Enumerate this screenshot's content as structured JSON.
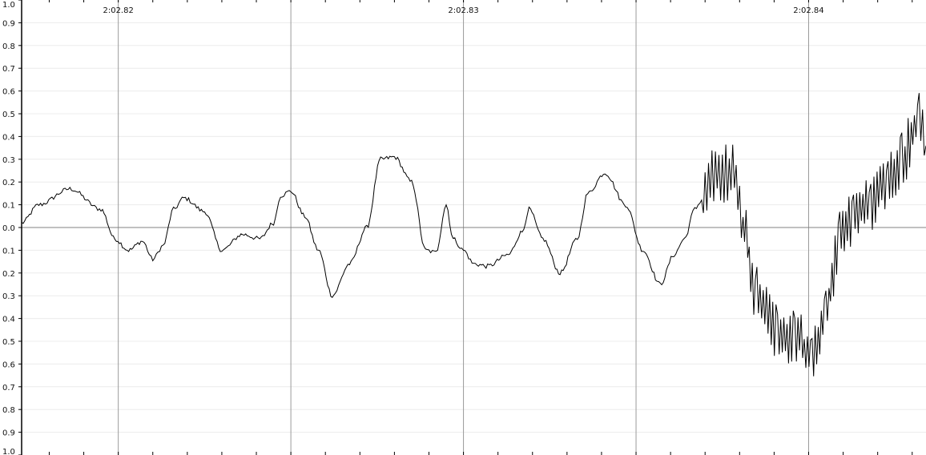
{
  "colors": {
    "background": "#ffffff",
    "grid_minor": "#ececec",
    "grid_major": "#9a9a9a",
    "zero_line": "#808080",
    "axis": "#000000",
    "waveform": "#000000"
  },
  "chart_data": {
    "type": "line",
    "title": "",
    "xlabel": "",
    "ylabel": "",
    "y_ticks": [
      "1.0",
      "0.9",
      "0.8",
      "0.7",
      "0.6",
      "0.5",
      "0.4",
      "0.3",
      "0.2",
      "0.1",
      "0.0",
      "0.1",
      "0.2",
      "0.3",
      "0.4",
      "0.5",
      "0.6",
      "0.7",
      "0.8",
      "0.9",
      "1.0"
    ],
    "time_labels": [
      "2:02.82",
      "2:02.83",
      "2:02.84"
    ],
    "time_label_values": [
      122.82,
      122.83,
      122.84
    ],
    "xlim": [
      122.8172,
      122.8434
    ],
    "ylim": [
      -1.0,
      1.0
    ],
    "major_grid_times": [
      122.82,
      122.825,
      122.83,
      122.835,
      122.84
    ],
    "minor_tick_step": 0.001,
    "grid": true,
    "series": [
      {
        "x": [
          122.8172,
          122.8177,
          122.8186,
          122.8195,
          122.8199,
          122.8203,
          122.8207,
          122.821,
          122.8213,
          122.8216,
          122.8219,
          122.8225,
          122.823,
          122.8236,
          122.8241,
          122.8245,
          122.8247,
          122.825,
          122.8254,
          122.8258,
          122.8262,
          122.8267,
          122.8272,
          122.8276,
          122.828,
          122.8285,
          122.8289,
          122.8292,
          122.8295,
          122.8297,
          122.83,
          122.8303,
          122.8307,
          122.8313,
          122.8317,
          122.8319,
          122.8323,
          122.8328,
          122.8333,
          122.8336,
          122.8341,
          122.8347,
          122.8352,
          122.8357,
          122.8361,
          122.8364,
          122.8367,
          122.8369,
          122.8371,
          122.8373,
          122.8375,
          122.8378,
          122.8381,
          122.8385,
          122.8391,
          122.8396,
          122.8401,
          122.8405,
          122.8409,
          122.8413,
          122.8418,
          122.8423,
          122.8427,
          122.8432,
          122.8434
        ],
        "y": [
          0.02,
          0.1,
          0.17,
          0.08,
          -0.05,
          -0.1,
          -0.06,
          -0.14,
          -0.08,
          0.08,
          0.13,
          0.07,
          -0.1,
          -0.03,
          -0.05,
          0.02,
          0.14,
          0.16,
          0.05,
          -0.1,
          -0.3,
          -0.16,
          0.0,
          0.3,
          0.31,
          0.2,
          -0.1,
          -0.11,
          0.1,
          -0.05,
          -0.1,
          -0.16,
          -0.17,
          -0.12,
          -0.02,
          0.08,
          -0.05,
          -0.2,
          -0.05,
          0.15,
          0.24,
          0.1,
          -0.1,
          -0.25,
          -0.12,
          -0.05,
          0.08,
          0.12,
          0.2,
          0.25,
          0.23,
          0.26,
          0.0,
          -0.3,
          -0.45,
          -0.48,
          -0.57,
          -0.35,
          -0.05,
          0.05,
          0.1,
          0.2,
          0.3,
          0.47,
          0.36
        ]
      }
    ]
  }
}
